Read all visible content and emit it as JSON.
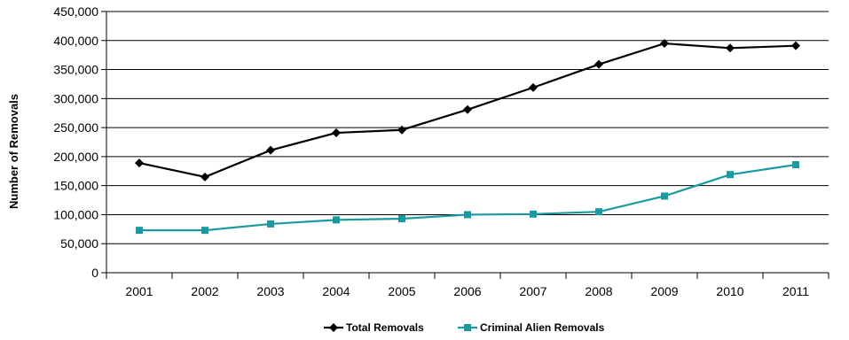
{
  "chart_data": {
    "type": "line",
    "title": "",
    "xlabel": "",
    "ylabel": "Number of Removals",
    "categories": [
      "2001",
      "2002",
      "2003",
      "2004",
      "2005",
      "2006",
      "2007",
      "2008",
      "2009",
      "2010",
      "2011"
    ],
    "ylim": [
      0,
      450000
    ],
    "yticks": [
      0,
      50000,
      100000,
      150000,
      200000,
      250000,
      300000,
      350000,
      400000,
      450000
    ],
    "ytick_labels": [
      "0",
      "50,000",
      "100,000",
      "150,000",
      "200,000",
      "250,000",
      "300,000",
      "350,000",
      "400,000",
      "450,000"
    ],
    "grid": "horizontal",
    "legend_position": "bottom",
    "series": [
      {
        "name": "Total Removals",
        "color": "#000000",
        "marker": "diamond",
        "values": [
          189000,
          165000,
          211000,
          241000,
          246000,
          281000,
          319000,
          359000,
          395000,
          387000,
          391000
        ]
      },
      {
        "name": "Criminal Alien Removals",
        "color": "#1a9aa0",
        "marker": "square",
        "values": [
          73000,
          73000,
          84000,
          91000,
          93000,
          100000,
          101000,
          105000,
          132000,
          169000,
          186000
        ]
      }
    ]
  }
}
